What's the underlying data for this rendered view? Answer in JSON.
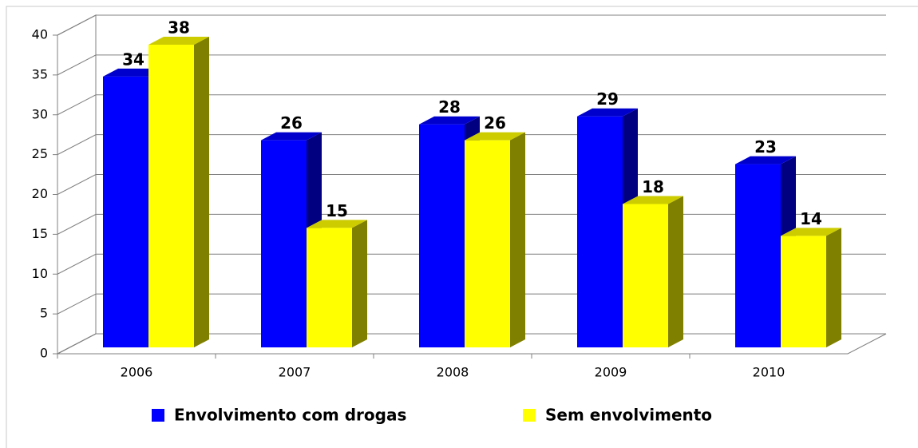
{
  "chart_data": {
    "type": "bar3d",
    "categories": [
      "2006",
      "2007",
      "2008",
      "2009",
      "2010"
    ],
    "series": [
      {
        "name": "Envolvimento com drogas",
        "color": "#0000ff",
        "values": [
          34,
          26,
          28,
          29,
          23
        ]
      },
      {
        "name": "Sem envolvimento",
        "color": "#ffff00",
        "values": [
          38,
          15,
          26,
          18,
          14
        ]
      }
    ],
    "ylim": [
      0,
      40
    ],
    "yticks": [
      0,
      5,
      10,
      15,
      20,
      25,
      30,
      35,
      40
    ],
    "grid": true,
    "legend": "bottom"
  }
}
